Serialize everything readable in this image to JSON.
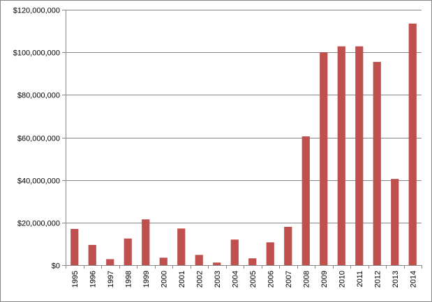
{
  "chart_data": {
    "type": "bar",
    "title": "",
    "xlabel": "",
    "ylabel": "",
    "categories": [
      "1995",
      "1996",
      "1997",
      "1998",
      "1999",
      "2000",
      "2001",
      "2002",
      "2003",
      "2004",
      "2005",
      "2006",
      "2007",
      "2008",
      "2009",
      "2010",
      "2011",
      "2012",
      "2013",
      "2014"
    ],
    "series": [
      {
        "values": [
          17000000,
          9500000,
          2800000,
          12500000,
          21500000,
          3500000,
          17200000,
          4800000,
          1200000,
          12000000,
          3200000,
          10700000,
          18000000,
          60500000,
          100000000,
          102800000,
          102800000,
          95500000,
          40500000,
          113500000
        ],
        "color": "#c0504d"
      }
    ],
    "ylim": [
      0,
      120000000
    ],
    "y_ticks": [
      0,
      20000000,
      40000000,
      60000000,
      80000000,
      100000000,
      120000000
    ],
    "y_tick_labels": [
      "$0",
      "$20,000,000",
      "$40,000,000",
      "$60,000,000",
      "$80,000,000",
      "$100,000,000",
      "$120,000,000"
    ],
    "x_tick_rotation": "vertical",
    "grid": true,
    "legend": "none"
  }
}
